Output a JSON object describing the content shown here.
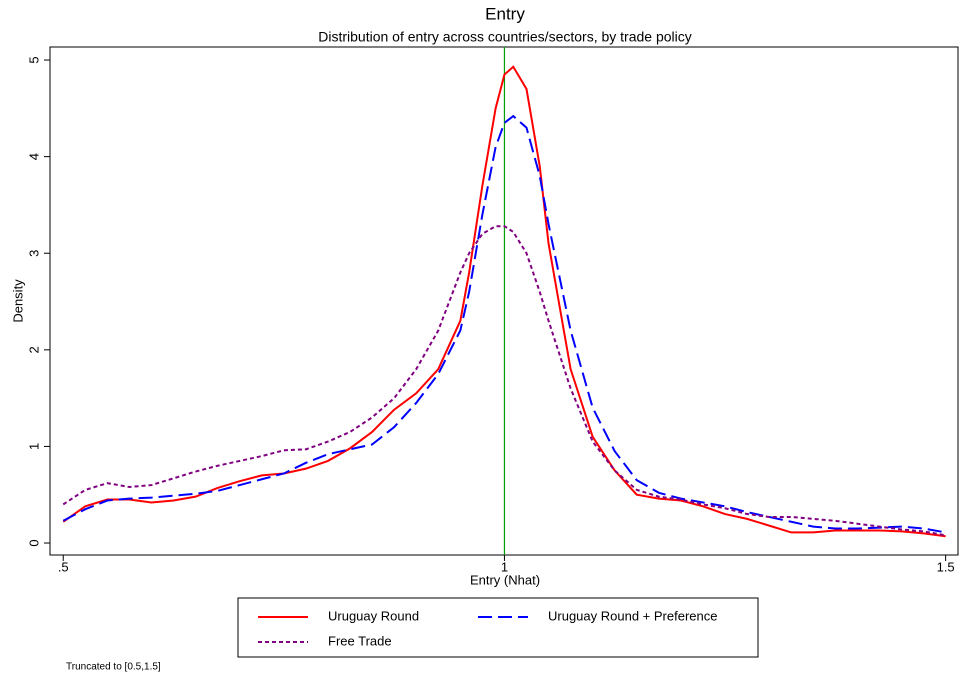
{
  "chart_data": {
    "type": "line",
    "title": "Entry",
    "subtitle": "Distribution of entry across countries/sectors, by trade policy",
    "x_label": "Entry (Nhat)",
    "y_label": "Density",
    "note": "Truncated to [0.5,1.5]",
    "x": [
      0.5,
      0.525,
      0.55,
      0.575,
      0.6,
      0.625,
      0.65,
      0.675,
      0.7,
      0.725,
      0.75,
      0.775,
      0.8,
      0.825,
      0.85,
      0.875,
      0.9,
      0.925,
      0.95,
      0.96,
      0.975,
      0.99,
      1.0,
      1.01,
      1.025,
      1.04,
      1.05,
      1.075,
      1.1,
      1.125,
      1.15,
      1.175,
      1.2,
      1.225,
      1.25,
      1.275,
      1.3,
      1.325,
      1.35,
      1.375,
      1.4,
      1.425,
      1.45,
      1.475,
      1.5
    ],
    "series": [
      {
        "name": "Uruguay Round",
        "color": "#ff0000",
        "dash": "solid",
        "values": [
          0.22,
          0.38,
          0.45,
          0.45,
          0.42,
          0.44,
          0.48,
          0.57,
          0.64,
          0.7,
          0.72,
          0.77,
          0.85,
          0.98,
          1.15,
          1.38,
          1.55,
          1.8,
          2.3,
          2.8,
          3.7,
          4.5,
          4.85,
          4.93,
          4.7,
          3.9,
          3.1,
          1.8,
          1.1,
          0.75,
          0.5,
          0.46,
          0.44,
          0.38,
          0.3,
          0.25,
          0.18,
          0.11,
          0.11,
          0.13,
          0.13,
          0.13,
          0.12,
          0.1,
          0.07
        ]
      },
      {
        "name": "Uruguay Round + Preference",
        "color": "#0000ff",
        "dash": "long",
        "values": [
          0.23,
          0.35,
          0.44,
          0.46,
          0.47,
          0.49,
          0.51,
          0.54,
          0.6,
          0.66,
          0.72,
          0.83,
          0.92,
          0.97,
          1.02,
          1.2,
          1.45,
          1.75,
          2.2,
          2.6,
          3.4,
          4.1,
          4.35,
          4.42,
          4.3,
          3.8,
          3.3,
          2.2,
          1.4,
          0.95,
          0.65,
          0.52,
          0.46,
          0.42,
          0.38,
          0.32,
          0.27,
          0.22,
          0.17,
          0.15,
          0.15,
          0.16,
          0.17,
          0.15,
          0.11
        ]
      },
      {
        "name": "Free Trade",
        "color": "#800080",
        "dash": "short",
        "values": [
          0.4,
          0.55,
          0.62,
          0.58,
          0.6,
          0.67,
          0.74,
          0.8,
          0.85,
          0.9,
          0.96,
          0.97,
          1.05,
          1.15,
          1.3,
          1.5,
          1.8,
          2.2,
          2.8,
          3.0,
          3.2,
          3.28,
          3.28,
          3.22,
          3.0,
          2.6,
          2.3,
          1.6,
          1.05,
          0.75,
          0.55,
          0.48,
          0.45,
          0.4,
          0.36,
          0.3,
          0.27,
          0.27,
          0.25,
          0.23,
          0.2,
          0.17,
          0.14,
          0.12,
          0.08
        ]
      }
    ],
    "xline": 1,
    "xline_color": "#00a000",
    "xlim": [
      0.485,
      1.514
    ],
    "ylim": [
      -0.124,
      5.135
    ],
    "xticks": [
      {
        "value": 0.5,
        "label": ".5"
      },
      1,
      1.5
    ],
    "yticks": [
      0,
      1,
      2,
      3,
      4,
      5
    ]
  }
}
